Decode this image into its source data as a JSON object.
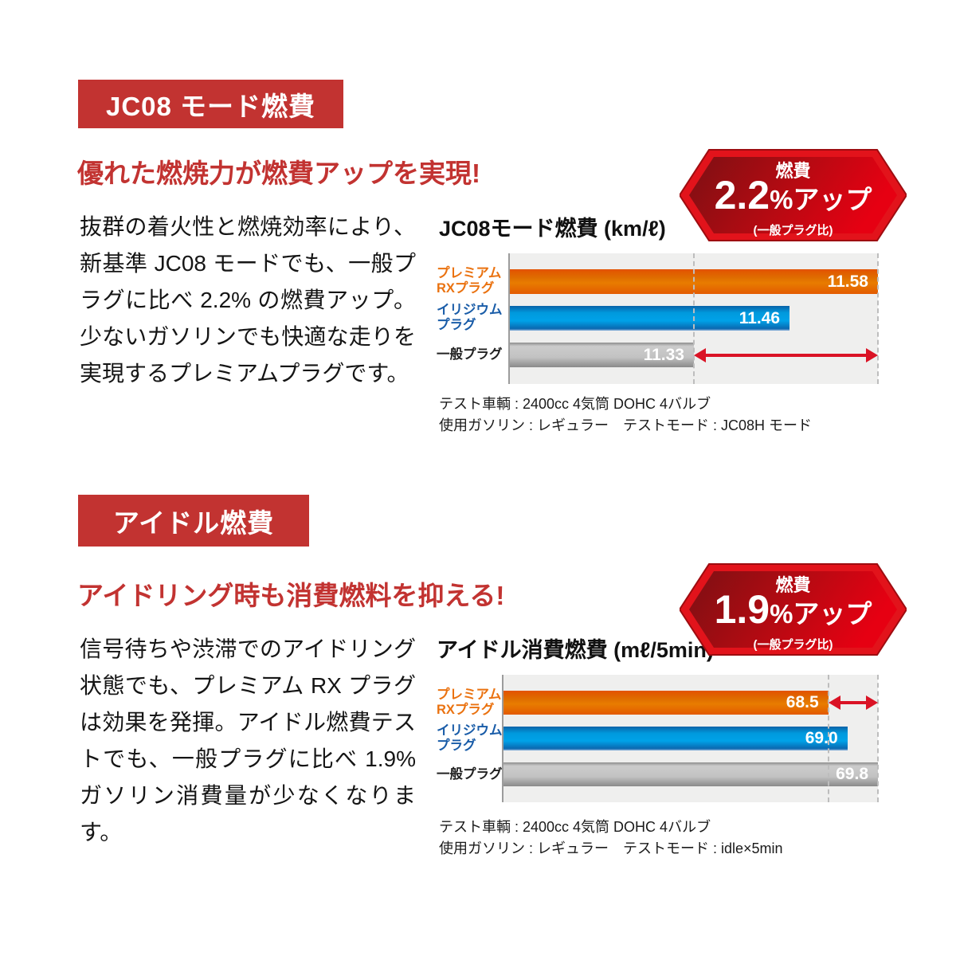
{
  "colors": {
    "badge_red": "#c23331",
    "headline_red": "#c23331",
    "hex_border_red": "#e61317",
    "hex_gradient_dark": "#7c1013",
    "hex_gradient_bright": "#e60012",
    "arrow_red": "#da1325",
    "bar_orange": "#e87c00",
    "bar_blue": "#00a2e8",
    "bar_gray": "#c2c2c2",
    "plot_background": "#efefee"
  },
  "sections": [
    {
      "badge": "JC08 モード燃費",
      "headline": "優れた燃焼力が燃費アップを実現!",
      "body": "抜群の着火性と燃焼効率により、新基準 JC08 モードでも、一般プラグに比べ 2.2% の燃費アップ。少ないガソリンでも快適な走りを実現するプレミアムプラグです。",
      "hexagon": {
        "label": "燃費",
        "value": "2.2",
        "suffix": "%アップ",
        "note": "(一般プラグ比)"
      },
      "chart_title": "JC08モード燃費 (km/ℓ)",
      "notes": [
        "テスト車輌 : 2400cc 4気筒 DOHC 4バルブ",
        "使用ガソリン : レギュラー　テストモード : JC08H モード"
      ]
    },
    {
      "badge": "アイドル燃費",
      "headline": "アイドリング時も消費燃料を抑える!",
      "body": "信号待ちや渋滞でのアイドリング状態でも、プレミアム RX プラグは効果を発揮。アイドル燃費テストでも、一般プラグに比べ 1.9% ガソリン消費量が少なくなります。",
      "hexagon": {
        "label": "燃費",
        "value": "1.9",
        "suffix": "%アップ",
        "note": "(一般プラグ比)"
      },
      "chart_title": "アイドル消費燃費 (mℓ/5min)",
      "notes": [
        "テスト車輌 : 2400cc 4気筒 DOHC 4バルブ",
        "使用ガソリン : レギュラー　テストモード : idle×5min"
      ]
    }
  ],
  "chart_data": [
    {
      "type": "bar",
      "orientation": "horizontal",
      "title": "JC08モード燃費 (km/ℓ)",
      "unit": "km/ℓ",
      "categories": [
        "プレミアム\nRXプラグ",
        "イリジウム\nプラグ",
        "一般プラグ"
      ],
      "values": [
        11.58,
        11.46,
        11.33
      ],
      "value_labels": [
        "11.58",
        "11.46",
        "11.33"
      ],
      "bar_colors": [
        "orange",
        "blue",
        "gray"
      ],
      "xlim": [
        11.08,
        11.58
      ],
      "grid": false,
      "dashed_at": [
        11.33,
        11.58
      ],
      "arrow": {
        "from": 11.33,
        "to": 11.58,
        "row": 2
      },
      "callout": "燃費 2.2%アップ (一般プラグ比)"
    },
    {
      "type": "bar",
      "orientation": "horizontal",
      "title": "アイドル消費燃費 (mℓ/5min)",
      "unit": "mℓ/5min",
      "categories": [
        "プレミアム\nRXプラグ",
        "イリジウム\nプラグ",
        "一般プラグ"
      ],
      "values": [
        68.5,
        69.0,
        69.8
      ],
      "value_labels": [
        "68.5",
        "69.0",
        "69.8"
      ],
      "bar_colors": [
        "orange",
        "blue",
        "gray"
      ],
      "xlim": [
        60,
        69.8
      ],
      "grid": false,
      "dashed_at": [
        68.5,
        69.8
      ],
      "arrow": {
        "from": 68.5,
        "to": 69.8,
        "row": 0
      },
      "callout": "燃費 1.9%アップ (一般プラグ比)"
    }
  ]
}
